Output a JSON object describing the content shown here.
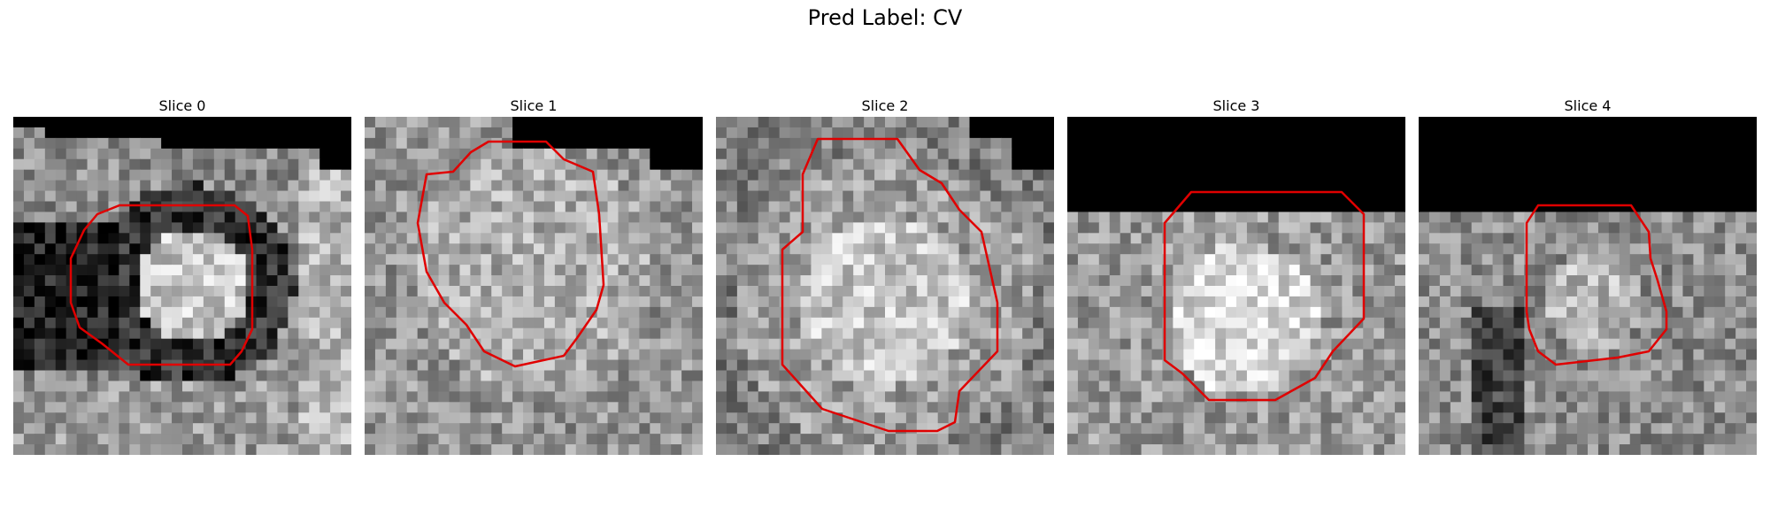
{
  "figure": {
    "title": "Pred Label: CV",
    "contour_color": "#e00000",
    "slices": [
      {
        "title": "Slice 0"
      },
      {
        "title": "Slice 1"
      },
      {
        "title": "Slice 2"
      },
      {
        "title": "Slice 3"
      },
      {
        "title": "Slice 4"
      }
    ]
  }
}
